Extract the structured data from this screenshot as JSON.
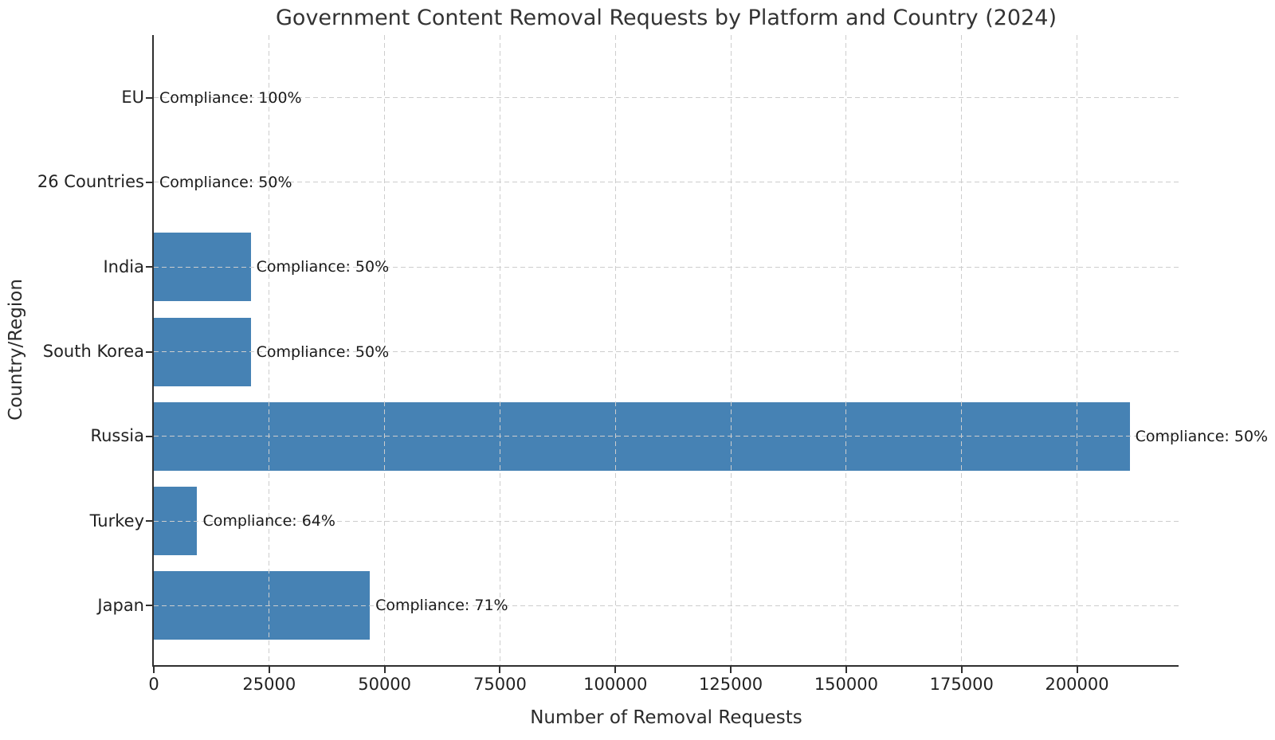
{
  "figure": {
    "title": "Government Content Removal Requests by Platform and Country (2024)",
    "background_color": "#ffffff"
  },
  "chart_data": {
    "type": "bar",
    "orientation": "horizontal",
    "title": "Government Content Removal Requests by Platform and Country (2024)",
    "xlabel": "Number of Removal Requests",
    "ylabel": "Country/Region",
    "categories": [
      "EU",
      "26 Countries",
      "India",
      "South Korea",
      "Russia",
      "Turkey",
      "Japan"
    ],
    "values": [
      0,
      0,
      21000,
      21000,
      211400,
      9400,
      46800
    ],
    "compliance_percent": [
      100,
      50,
      50,
      50,
      50,
      64,
      71
    ],
    "annotations": [
      "Compliance: 100%",
      "Compliance: 50%",
      "Compliance: 50%",
      "Compliance: 50%",
      "Compliance: 50%",
      "Compliance: 64%",
      "Compliance: 71%"
    ],
    "x_ticks": [
      0,
      25000,
      50000,
      75000,
      100000,
      125000,
      150000,
      175000,
      200000
    ],
    "x_tick_labels": [
      "0",
      "25000",
      "50000",
      "75000",
      "100000",
      "125000",
      "150000",
      "175000",
      "200000"
    ],
    "xlim": [
      0,
      222000
    ],
    "bar_color": "#4682b4",
    "grid": {
      "visible": true,
      "style": "dashed",
      "color": "#cdcdcd"
    },
    "spine_color": "#2f2f2f",
    "legend": null
  }
}
